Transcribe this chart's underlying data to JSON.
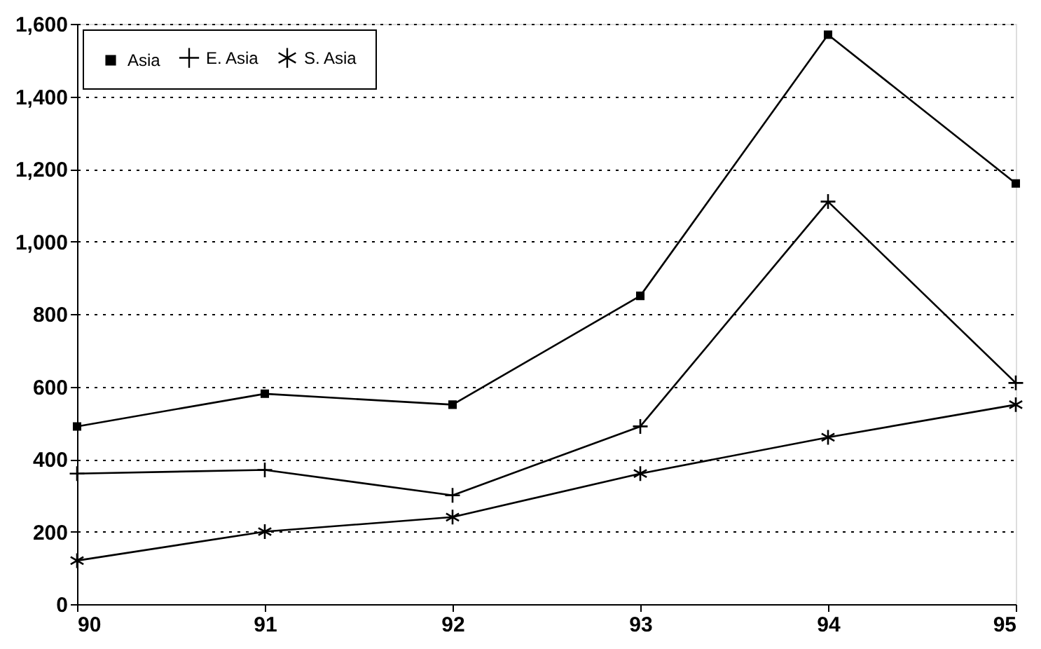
{
  "chart_data": {
    "type": "line",
    "x": [
      90,
      91,
      92,
      93,
      94,
      95
    ],
    "xlim": [
      90,
      95
    ],
    "xticks": [
      90,
      91,
      92,
      93,
      94,
      95
    ],
    "ylim": [
      0,
      1600
    ],
    "yticks": [
      0,
      200,
      400,
      600,
      800,
      {
        "value": 1000,
        "label": "1,000"
      },
      {
        "value": 1200,
        "label": "1,200"
      },
      {
        "value": 1400,
        "label": "1,400"
      },
      {
        "value": 1600,
        "label": "1,600"
      }
    ],
    "grid": "y",
    "legend": "top left",
    "line_style": "solid",
    "series": [
      {
        "name": "Asia",
        "color": "#000000",
        "marker": "square",
        "values": [
          490,
          580,
          550,
          850,
          1570,
          1160
        ]
      },
      {
        "name": "E. Asia",
        "color": "#000000",
        "marker": "cross",
        "values": [
          360,
          370,
          300,
          490,
          1110,
          610
        ]
      },
      {
        "name": "S. Asia",
        "color": "#000000",
        "marker": "cross",
        "values": [
          120,
          200,
          240,
          360,
          460,
          550
        ]
      }
    ]
  }
}
